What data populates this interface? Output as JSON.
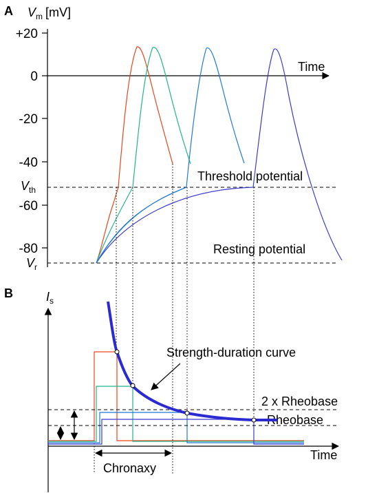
{
  "panel_a": {
    "letter": "A",
    "ylabel_symbol": "V",
    "ylabel_sub": "m",
    "ylabel_unit": "[mV]",
    "yticks": [
      "+20",
      "0",
      "-20",
      "-40",
      "-60",
      "-80"
    ],
    "vth_symbol": "V",
    "vth_sub": "th",
    "vr_symbol": "V",
    "vr_sub": "r",
    "time_label": "Time",
    "threshold_label": "Threshold potential",
    "resting_label": "Resting potential"
  },
  "panel_b": {
    "letter": "B",
    "ylabel_symbol": "I",
    "ylabel_sub": "s",
    "time_label": "Time",
    "sd_curve_label": "Strength-duration curve",
    "two_rheobase_label": "2 x Rheobase",
    "rheobase_label": "Rheobase",
    "chronaxy_label": "Chronaxy"
  },
  "colors": {
    "trace_1": "#e8451e",
    "trace_2": "#22b58a",
    "trace_3": "#1f78d8",
    "trace_4": "#3a3ad0",
    "sd_curve": "#2a2ad0"
  }
}
